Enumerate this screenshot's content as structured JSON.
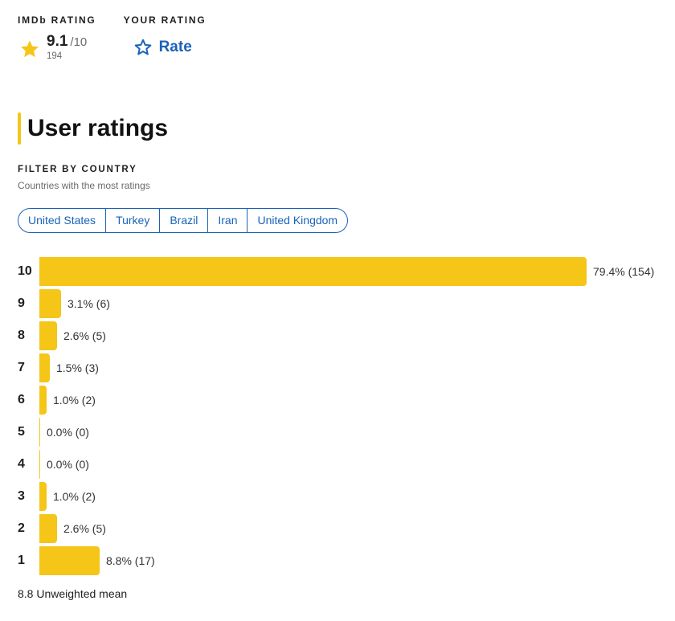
{
  "imdb_rating": {
    "label": "IMDb RATING",
    "score": "9.1",
    "out_of": "/10",
    "votes": "194",
    "icon": "star-filled-icon",
    "star_color": "#f5c518"
  },
  "your_rating": {
    "label": "YOUR RATING",
    "button_label": "Rate",
    "icon": "star-outline-icon",
    "color": "#1a63b8"
  },
  "section": {
    "title": "User ratings",
    "accent_color": "#f5c518"
  },
  "filter": {
    "label": "FILTER BY COUNTRY",
    "subtitle": "Countries with the most ratings",
    "countries": [
      "United States",
      "Turkey",
      "Brazil",
      "Iran",
      "United Kingdom"
    ]
  },
  "chart_data": {
    "type": "bar",
    "orientation": "horizontal",
    "bar_color": "#f5c518",
    "categories": [
      "10",
      "9",
      "8",
      "7",
      "6",
      "5",
      "4",
      "3",
      "2",
      "1"
    ],
    "percentages": [
      79.4,
      3.1,
      2.6,
      1.5,
      1.0,
      0.0,
      0.0,
      1.0,
      2.6,
      8.8
    ],
    "counts": [
      154,
      6,
      5,
      3,
      2,
      0,
      0,
      2,
      5,
      17
    ],
    "value_labels": [
      "79.4% (154)",
      "3.1% (6)",
      "2.6% (5)",
      "1.5% (3)",
      "1.0% (2)",
      "0.0% (0)",
      "0.0% (0)",
      "1.0% (2)",
      "2.6% (5)",
      "8.8% (17)"
    ]
  },
  "footer": {
    "mean_text": "8.8 Unweighted mean"
  }
}
